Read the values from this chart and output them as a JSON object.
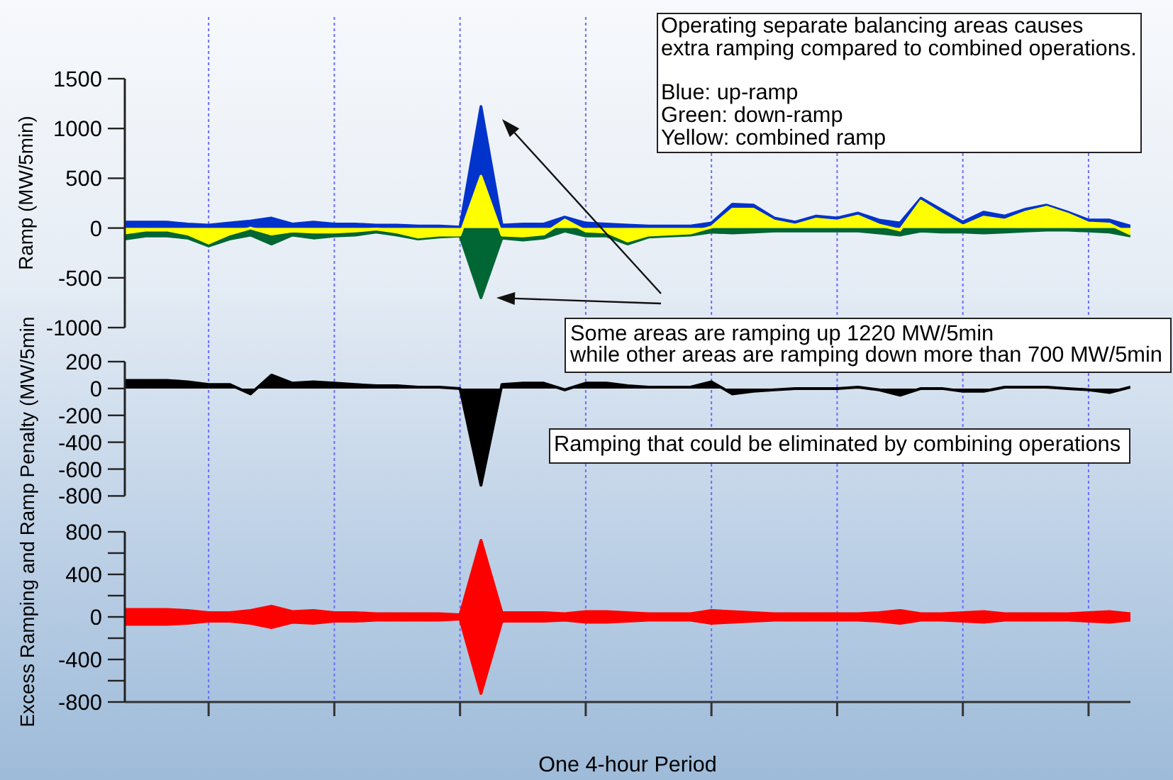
{
  "chart_data": [
    {
      "type": "area",
      "ylabel": "Ramp (MW/5min)",
      "categories": [
        null,
        null,
        null,
        null,
        null,
        null,
        null,
        null,
        null,
        null,
        null,
        null,
        null,
        null,
        null,
        null,
        null,
        null,
        null,
        null,
        null,
        null,
        null,
        null,
        null,
        null,
        null,
        null,
        null,
        null,
        null,
        null,
        null,
        null,
        null,
        null,
        null,
        null,
        null,
        null,
        null,
        null,
        null,
        null,
        null,
        null,
        null,
        null,
        null
      ],
      "series": [
        {
          "color": "#0033cc",
          "values": [
            60,
            60,
            60,
            40,
            30,
            50,
            70,
            100,
            40,
            60,
            40,
            40,
            30,
            30,
            20,
            20,
            10,
            1220,
            30,
            40,
            40,
            110,
            50,
            40,
            30,
            20,
            20,
            20,
            50,
            240,
            230,
            100,
            60,
            120,
            100,
            150,
            80,
            50,
            300,
            180,
            60,
            160,
            120,
            190,
            230,
            160,
            80,
            80,
            20
          ]
        },
        {
          "color": "#006633",
          "values": [
            -110,
            -80,
            -80,
            -100,
            -180,
            -110,
            -70,
            -160,
            -70,
            -100,
            -80,
            -70,
            -40,
            -70,
            -110,
            -90,
            -80,
            -700,
            -100,
            -120,
            -100,
            -30,
            -80,
            -80,
            -160,
            -90,
            -80,
            -70,
            -40,
            -50,
            -40,
            -30,
            -30,
            -30,
            -30,
            -30,
            -50,
            -70,
            -30,
            -40,
            -40,
            -50,
            -40,
            -30,
            -20,
            -20,
            -30,
            -40,
            -80
          ]
        },
        {
          "color": "#ffff00",
          "values": [
            -50,
            -20,
            -20,
            -60,
            -150,
            -60,
            0,
            -60,
            -30,
            -40,
            -40,
            -30,
            -10,
            -40,
            -90,
            -70,
            -70,
            520,
            -70,
            -80,
            -60,
            80,
            -30,
            -40,
            -130,
            -70,
            -60,
            -50,
            10,
            190,
            190,
            70,
            30,
            90,
            70,
            120,
            30,
            -20,
            270,
            140,
            20,
            110,
            80,
            160,
            210,
            140,
            50,
            40,
            -60
          ]
        }
      ],
      "ylim": [
        -1000,
        1500
      ],
      "yticks": [
        -1000,
        -500,
        0,
        500,
        1000,
        1500
      ],
      "grid": "x",
      "tick_labels": "y",
      "annotations": [
        "Operating separate balancing areas causes\nextra ramping compared to combined operations.",
        "Blue: up-ramp",
        "Green: down-ramp",
        "Yellow: combined ramp",
        "Some areas are ramping up 1220 MW/5min\nwhile other areas are ramping down more than 700 MW/5min"
      ]
    },
    {
      "type": "area",
      "ylabel": "Excess Ramping and Ramp Penalty (MW/5min",
      "categories": [
        null,
        null,
        null,
        null,
        null,
        null,
        null,
        null,
        null,
        null,
        null,
        null,
        null,
        null,
        null,
        null,
        null,
        null,
        null,
        null,
        null,
        null,
        null,
        null,
        null,
        null,
        null,
        null,
        null,
        null,
        null,
        null,
        null,
        null,
        null,
        null,
        null,
        null,
        null,
        null,
        null,
        null,
        null,
        null,
        null,
        null,
        null,
        null,
        null
      ],
      "series": [
        {
          "color": "#000000",
          "values": [
            60,
            60,
            60,
            50,
            30,
            30,
            -40,
            100,
            40,
            50,
            40,
            30,
            20,
            20,
            10,
            10,
            0,
            -720,
            30,
            40,
            40,
            -10,
            40,
            40,
            20,
            10,
            10,
            10,
            50,
            -40,
            -20,
            -10,
            0,
            0,
            0,
            10,
            -10,
            -50,
            0,
            0,
            -20,
            -20,
            10,
            10,
            10,
            0,
            -10,
            -30,
            10
          ]
        }
      ],
      "ylim": [
        -800,
        200
      ],
      "yticks": [
        -800,
        -600,
        -400,
        -200,
        0,
        200
      ],
      "grid": "x",
      "tick_labels": "y",
      "annotations": [
        "Ramping that could be eliminated by combining operations"
      ]
    },
    {
      "type": "area",
      "xlabel": "One 4-hour Period",
      "categories": [
        null,
        null,
        null,
        null,
        null,
        null,
        null,
        null,
        null,
        null,
        null,
        null,
        null,
        null,
        null,
        null,
        null,
        null,
        null,
        null,
        null,
        null,
        null,
        null,
        null,
        null,
        null,
        null,
        null,
        null,
        null,
        null,
        null,
        null,
        null,
        null,
        null,
        null,
        null,
        null,
        null,
        null,
        null,
        null,
        null,
        null,
        null,
        null,
        null
      ],
      "series": [
        {
          "color": "#ff0000",
          "values": [
            70,
            70,
            70,
            60,
            40,
            40,
            60,
            100,
            50,
            60,
            40,
            40,
            30,
            30,
            30,
            30,
            20,
            720,
            40,
            40,
            40,
            30,
            50,
            50,
            40,
            30,
            30,
            30,
            60,
            50,
            40,
            30,
            30,
            30,
            30,
            30,
            40,
            60,
            30,
            30,
            40,
            50,
            30,
            30,
            30,
            30,
            40,
            50,
            30
          ]
        },
        {
          "color": "#fe0000",
          "values": [
            -70,
            -70,
            -70,
            -60,
            -40,
            -40,
            -60,
            -100,
            -50,
            -60,
            -40,
            -40,
            -30,
            -30,
            -30,
            -30,
            -20,
            -720,
            -40,
            -40,
            -40,
            -30,
            -50,
            -50,
            -40,
            -30,
            -30,
            -30,
            -60,
            -50,
            -40,
            -30,
            -30,
            -30,
            -30,
            -30,
            -40,
            -60,
            -30,
            -30,
            -40,
            -50,
            -30,
            -30,
            -30,
            -30,
            -40,
            -50,
            -30
          ]
        }
      ],
      "ylim": [
        -800,
        800
      ],
      "yticks": [
        -800,
        {
          "value": -600,
          "label": null
        },
        -400,
        {
          "value": -200,
          "label": null
        },
        0,
        {
          "value": 200,
          "label": null
        },
        400,
        {
          "value": 600,
          "label": null
        },
        800
      ],
      "grid": "x",
      "tick_labels": "y"
    }
  ]
}
